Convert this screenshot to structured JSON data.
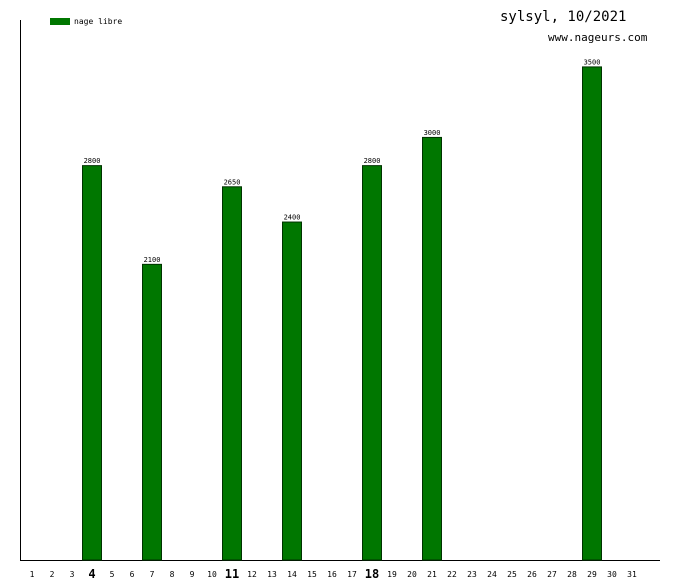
{
  "header": {
    "title": "sylsyl, 10/2021",
    "site": "www.nageurs.com"
  },
  "colors": {
    "bar": "#007700",
    "axis": "#000000",
    "background": "#ffffff"
  },
  "chart_data": {
    "type": "bar",
    "title": "sylsyl, 10/2021",
    "xlabel": "",
    "ylabel": "",
    "legend": {
      "position": "top-left",
      "entries": [
        "nage libre"
      ]
    },
    "grid": false,
    "ylim": [
      0,
      3900
    ],
    "categories": [
      "1",
      "2",
      "3",
      "4",
      "5",
      "6",
      "7",
      "8",
      "9",
      "10",
      "11",
      "12",
      "13",
      "14",
      "15",
      "16",
      "17",
      "18",
      "19",
      "20",
      "21",
      "22",
      "23",
      "24",
      "25",
      "26",
      "27",
      "28",
      "29",
      "30",
      "31"
    ],
    "highlighted_categories": [
      "4",
      "11",
      "18"
    ],
    "series": [
      {
        "name": "nage libre",
        "values": [
          0,
          0,
          0,
          2800,
          0,
          0,
          2100,
          0,
          0,
          0,
          2650,
          0,
          0,
          2400,
          0,
          0,
          0,
          2800,
          0,
          0,
          3000,
          0,
          0,
          0,
          0,
          0,
          0,
          0,
          3500,
          0,
          0
        ]
      }
    ]
  }
}
